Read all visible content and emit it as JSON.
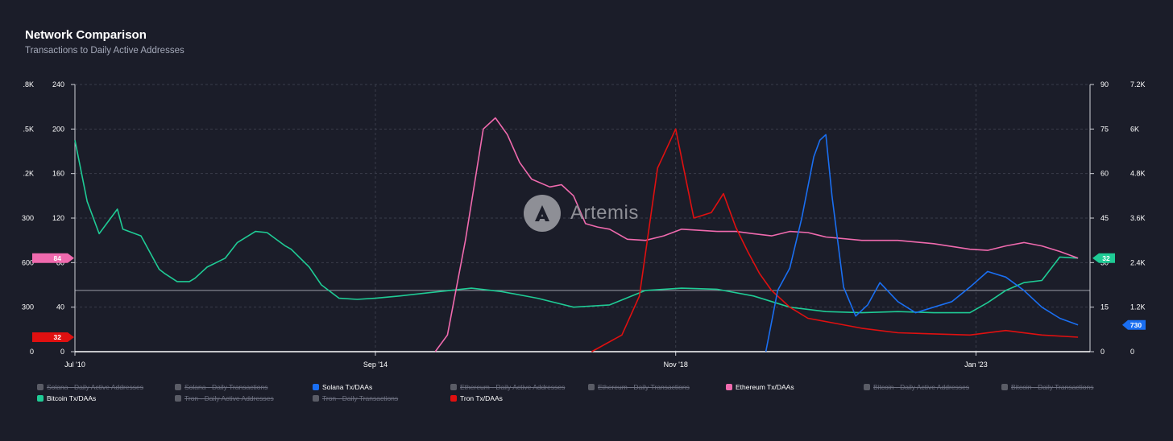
{
  "header": {
    "title": "Network Comparison",
    "subtitle": "Transactions to Daily Active Addresses"
  },
  "watermark": {
    "text": "Artemis",
    "icon": "artemis-logo-icon"
  },
  "colors": {
    "background": "#1b1d29",
    "solana": "#1a6ff2",
    "ethereum": "#f06aae",
    "bitcoin": "#1fcb95",
    "tron": "#e01010"
  },
  "legend": [
    {
      "label": "Solana - Daily Active Addresses",
      "active": false,
      "color": "#5a5c66"
    },
    {
      "label": "Solana - Daily Transactions",
      "active": false,
      "color": "#5a5c66"
    },
    {
      "label": "Solana Tx/DAAs",
      "active": true,
      "color": "#1a6ff2"
    },
    {
      "label": "Ethereum - Daily Active Addresses",
      "active": false,
      "color": "#5a5c66"
    },
    {
      "label": "Ethereum - Daily Transactions",
      "active": false,
      "color": "#5a5c66"
    },
    {
      "label": "Ethereum Tx/DAAs",
      "active": true,
      "color": "#f06aae"
    },
    {
      "label": "Bitcoin - Daily Active Addresses",
      "active": false,
      "color": "#5a5c66"
    },
    {
      "label": "Bitcoin - Daily Transactions",
      "active": false,
      "color": "#5a5c66"
    },
    {
      "label": "Bitcoin Tx/DAAs",
      "active": true,
      "color": "#1fcb95"
    },
    {
      "label": "Tron - Daily Active Addresses",
      "active": false,
      "color": "#5a5c66"
    },
    {
      "label": "Tron - Daily Transactions",
      "active": false,
      "color": "#5a5c66"
    },
    {
      "label": "Tron Tx/DAAs",
      "active": true,
      "color": "#e01010"
    }
  ],
  "chart_data": {
    "type": "line",
    "title": "Network Comparison",
    "subtitle": "Transactions to Daily Active Addresses",
    "x_ticks": [
      "Jul '10",
      "Sep '14",
      "Nov '18",
      "Jan '23"
    ],
    "x_range": [
      "2010-07-01",
      "2024-08-01"
    ],
    "y_axes": {
      "far_left": {
        "ticks": [
          ".8K",
          ".5K",
          ".2K",
          "300",
          "600",
          "300",
          "0"
        ]
      },
      "left": {
        "ticks": [
          "240",
          "200",
          "160",
          "120",
          "80",
          "40",
          "0"
        ],
        "range": [
          0,
          240
        ]
      },
      "right": {
        "ticks": [
          "90",
          "75",
          "60",
          "45",
          "30",
          "15",
          "0"
        ],
        "range": [
          0,
          90
        ]
      },
      "far_right": {
        "ticks": [
          "7.2K",
          "6K",
          "4.8K",
          "3.6K",
          "2.4K",
          "1.2K",
          "0"
        ],
        "range": [
          0,
          7200
        ]
      }
    },
    "grid": true,
    "reference_line_y": 55,
    "end_markers": [
      {
        "series": "Ethereum Tx/DAAs",
        "label": "84",
        "side": "left",
        "y": 84
      },
      {
        "series": "Tron Tx/DAAs",
        "label": "32",
        "side": "left",
        "y": 13
      },
      {
        "series": "Bitcoin Tx/DAAs",
        "label": "32",
        "side": "right",
        "y": 84
      },
      {
        "series": "Solana Tx/DAAs",
        "label": "730",
        "side": "far-right",
        "y": 24
      }
    ],
    "series": [
      {
        "name": "Bitcoin Tx/DAAs",
        "x": [
          "2010-07",
          "2010-09",
          "2010-11",
          "2011-02",
          "2011-03",
          "2011-06",
          "2011-09",
          "2011-10",
          "2011-12",
          "2012-02",
          "2012-03",
          "2012-05",
          "2012-08",
          "2012-10",
          "2013-01",
          "2013-03",
          "2013-06",
          "2013-07",
          "2013-10",
          "2013-12",
          "2014-03",
          "2014-06",
          "2014-09",
          "2015-01",
          "2015-06",
          "2016-01",
          "2016-06",
          "2016-12",
          "2017-06",
          "2017-12",
          "2018-06",
          "2018-12",
          "2019-06",
          "2019-12",
          "2020-06",
          "2020-12",
          "2021-06",
          "2021-12",
          "2022-06",
          "2022-12",
          "2023-03",
          "2023-06",
          "2023-09",
          "2023-12",
          "2024-03",
          "2024-06"
        ],
        "values": [
          190,
          135,
          106,
          128,
          110,
          104,
          74,
          70,
          63,
          63,
          66,
          76,
          84,
          98,
          108,
          107,
          95,
          92,
          76,
          60,
          48,
          47,
          48,
          50,
          53,
          57,
          54,
          48,
          40,
          42,
          55,
          57,
          56,
          50,
          40,
          36,
          35,
          36,
          35,
          35,
          44,
          55,
          62,
          64,
          85,
          84
        ]
      },
      {
        "name": "Ethereum Tx/DAAs",
        "x": [
          "2015-07",
          "2015-09",
          "2015-12",
          "2016-03",
          "2016-05",
          "2016-07",
          "2016-09",
          "2016-11",
          "2017-02",
          "2017-04",
          "2017-06",
          "2017-08",
          "2017-10",
          "2017-12",
          "2018-03",
          "2018-06",
          "2018-09",
          "2018-12",
          "2019-03",
          "2019-06",
          "2019-09",
          "2019-12",
          "2020-03",
          "2020-06",
          "2020-09",
          "2020-12",
          "2021-06",
          "2021-12",
          "2022-06",
          "2022-12",
          "2023-03",
          "2023-06",
          "2023-09",
          "2023-12",
          "2024-03",
          "2024-06"
        ],
        "values": [
          0,
          15,
          100,
          200,
          210,
          195,
          170,
          155,
          148,
          150,
          140,
          115,
          112,
          110,
          101,
          100,
          104,
          110,
          109,
          108,
          108,
          106,
          104,
          108,
          107,
          103,
          100,
          100,
          97,
          92,
          91,
          95,
          98,
          95,
          90,
          84
        ]
      },
      {
        "name": "Tron Tx/DAAs",
        "x": [
          "2017-09",
          "2018-02",
          "2018-05",
          "2018-08",
          "2018-11",
          "2019-02",
          "2019-05",
          "2019-07",
          "2019-09",
          "2019-11",
          "2020-01",
          "2020-03",
          "2020-06",
          "2020-09",
          "2021-01",
          "2021-06",
          "2021-12",
          "2022-06",
          "2022-12",
          "2023-06",
          "2023-12",
          "2024-06"
        ],
        "values": [
          0,
          15,
          50,
          165,
          200,
          120,
          125,
          142,
          112,
          90,
          70,
          55,
          40,
          30,
          26,
          21,
          17,
          16,
          15,
          19,
          15,
          13
        ]
      },
      {
        "name": "Solana Tx/DAAs",
        "x": [
          "2020-02",
          "2020-04",
          "2020-06",
          "2020-08",
          "2020-10",
          "2020-11",
          "2020-12",
          "2021-01",
          "2021-03",
          "2021-05",
          "2021-07",
          "2021-09",
          "2021-12",
          "2022-03",
          "2022-06",
          "2022-09",
          "2022-12",
          "2023-03",
          "2023-06",
          "2023-09",
          "2023-12",
          "2024-03",
          "2024-06"
        ],
        "values": [
          0,
          55,
          75,
          120,
          175,
          190,
          195,
          140,
          58,
          32,
          42,
          62,
          45,
          35,
          40,
          45,
          58,
          72,
          67,
          55,
          40,
          30,
          24
        ]
      }
    ]
  }
}
